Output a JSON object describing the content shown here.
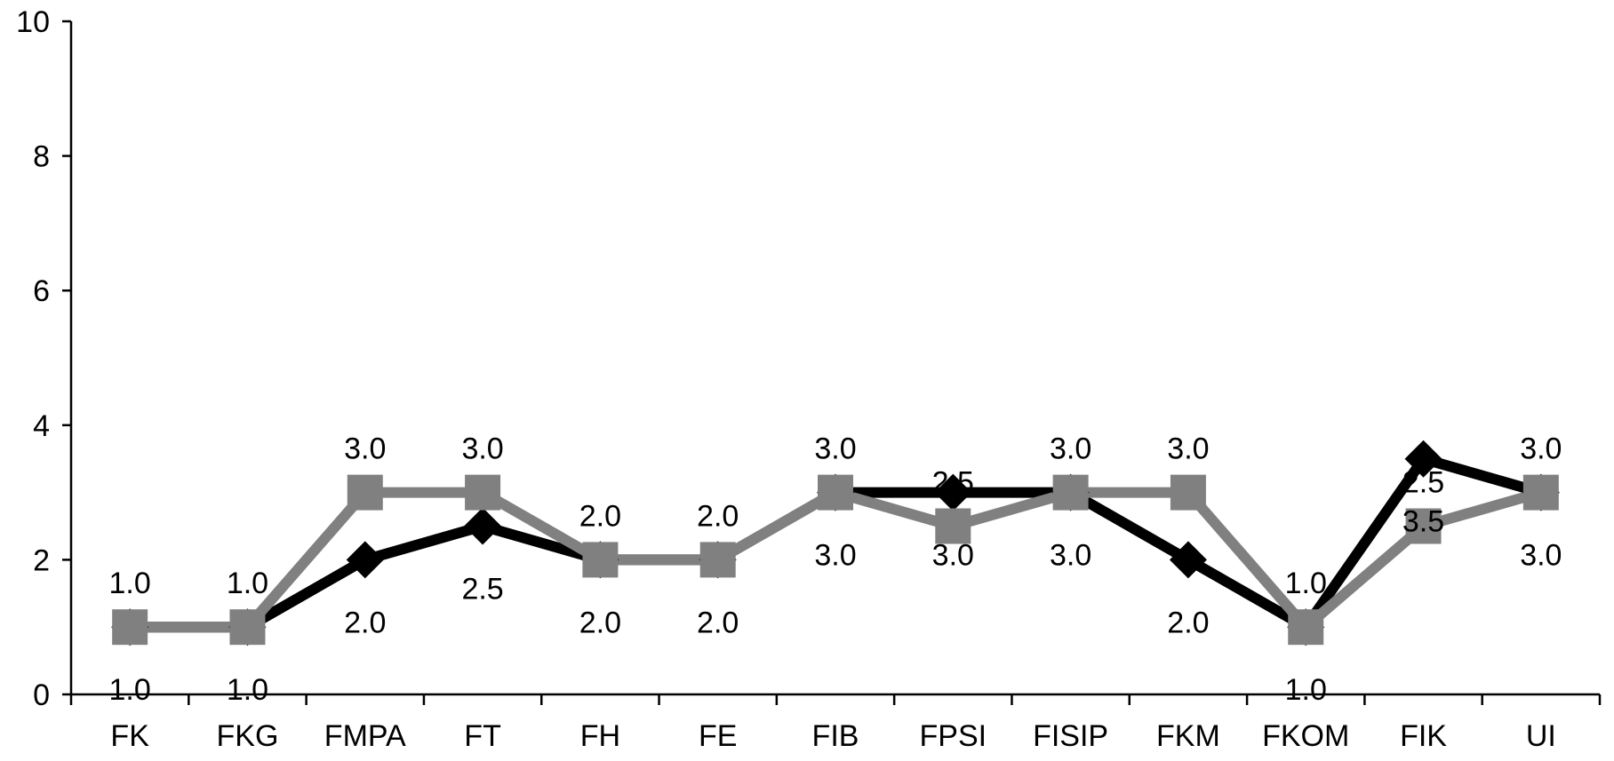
{
  "chart_data": {
    "type": "line",
    "categories": [
      "FK",
      "FKG",
      "FMPA",
      "FT",
      "FH",
      "FE",
      "FIB",
      "FPSI",
      "FISIP",
      "FKM",
      "FKOM",
      "FIK",
      "UI"
    ],
    "ylim": [
      0,
      10
    ],
    "yticks": [
      "0",
      "2",
      "4",
      "6",
      "8",
      "10"
    ],
    "grid": false,
    "series": [
      {
        "color": "#000000",
        "marker": "diamond",
        "values": [
          1.0,
          1.0,
          2.0,
          2.5,
          2.0,
          2.0,
          3.0,
          3.0,
          3.0,
          2.0,
          1.0,
          3.5,
          3.0
        ],
        "labels": [
          "1.0",
          "1.0",
          "2.0",
          "2.5",
          "2.0",
          "2.0",
          "3.0",
          "3.0",
          "3.0",
          "2.0",
          "1.0",
          "3.5",
          "3.0"
        ]
      },
      {
        "color": "#808080",
        "marker": "square",
        "values": [
          1.0,
          1.0,
          3.0,
          3.0,
          2.0,
          2.0,
          3.0,
          2.5,
          3.0,
          3.0,
          1.0,
          2.5,
          3.0
        ],
        "labels": [
          "1.0",
          "1.0",
          "3.0",
          "3.0",
          "2.0",
          "2.0",
          "3.0",
          "2.5",
          "3.0",
          "3.0",
          "1.0",
          "2.5",
          "3.0"
        ]
      }
    ]
  }
}
